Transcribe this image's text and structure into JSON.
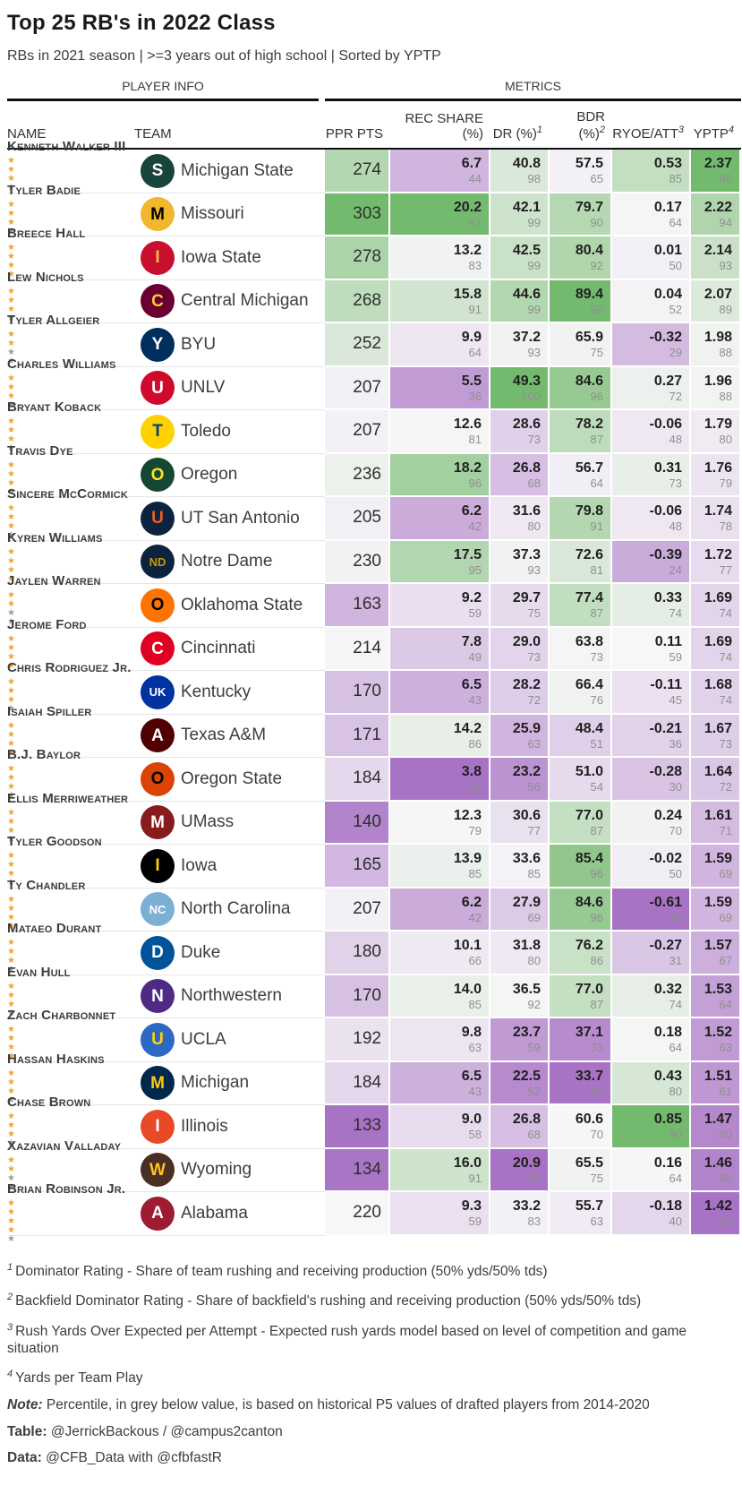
{
  "colors": {
    "gold_star": "#F0A330",
    "grey_star": "#9B9B9B",
    "scale_low": "#a873c4",
    "scale_mid": "#f7f6f8",
    "scale_high": "#74ba6e",
    "header_rule": "#0f0f0f"
  },
  "header": {
    "title": "Top 25 RB's in 2022 Class",
    "subtitle": "RBs in 2021 season | >=3 years out of high school | Sorted by YPTP"
  },
  "chart_data": {
    "type": "table",
    "spanners": [
      "PLAYER INFO",
      "METRICS"
    ],
    "columns": [
      {
        "label": "NAME",
        "sup": ""
      },
      {
        "label": "TEAM",
        "sup": ""
      },
      {
        "label": "PPR PTS",
        "sup": ""
      },
      {
        "label": "REC SHARE (%)",
        "sup": ""
      },
      {
        "label": "DR (%)",
        "sup": "1"
      },
      {
        "label": "BDR (%)",
        "sup": "2"
      },
      {
        "label": "RYOE/ATT",
        "sup": "3"
      },
      {
        "label": "YPTP",
        "sup": "4"
      }
    ],
    "stars_total": 5,
    "rows": [
      {
        "name": "Kenneth Walker III",
        "stars": 3,
        "team": "Michigan State",
        "logo": {
          "bg": "#18453B",
          "fg": "#FFFFFF",
          "text": "S"
        },
        "ppr": "274",
        "rec": [
          "6.7",
          "44"
        ],
        "dr": [
          "40.8",
          "98"
        ],
        "bdr": [
          "57.5",
          "65"
        ],
        "ryoe": [
          "0.53",
          "85"
        ],
        "yptp": [
          "2.37",
          "96"
        ]
      },
      {
        "name": "Tyler Badie",
        "stars": 3,
        "team": "Missouri",
        "logo": {
          "bg": "#F1B82D",
          "fg": "#000000",
          "text": "M"
        },
        "ppr": "303",
        "rec": [
          "20.2",
          "97"
        ],
        "dr": [
          "42.1",
          "99"
        ],
        "bdr": [
          "79.7",
          "90"
        ],
        "ryoe": [
          "0.17",
          "64"
        ],
        "yptp": [
          "2.22",
          "94"
        ]
      },
      {
        "name": "Breece Hall",
        "stars": 4,
        "team": "Iowa State",
        "logo": {
          "bg": "#C8102E",
          "fg": "#F1BE48",
          "text": "I"
        },
        "ppr": "278",
        "rec": [
          "13.2",
          "83"
        ],
        "dr": [
          "42.5",
          "99"
        ],
        "bdr": [
          "80.4",
          "92"
        ],
        "ryoe": [
          "0.01",
          "50"
        ],
        "yptp": [
          "2.14",
          "93"
        ]
      },
      {
        "name": "Lew Nichols",
        "stars": 3,
        "team": "Central Michigan",
        "logo": {
          "bg": "#6A0032",
          "fg": "#FFC82E",
          "text": "C"
        },
        "ppr": "268",
        "rec": [
          "15.8",
          "91"
        ],
        "dr": [
          "44.6",
          "99"
        ],
        "bdr": [
          "89.4",
          "98"
        ],
        "ryoe": [
          "0.04",
          "52"
        ],
        "yptp": [
          "2.07",
          "89"
        ]
      },
      {
        "name": "Tyler Allgeier",
        "stars": 2,
        "team": "BYU",
        "logo": {
          "bg": "#002E5D",
          "fg": "#FFFFFF",
          "text": "Y"
        },
        "ppr": "252",
        "rec": [
          "9.9",
          "64"
        ],
        "dr": [
          "37.2",
          "93"
        ],
        "bdr": [
          "65.9",
          "75"
        ],
        "ryoe": [
          "-0.32",
          "29"
        ],
        "yptp": [
          "1.98",
          "88"
        ]
      },
      {
        "name": "Charles Williams",
        "stars": 3,
        "team": "UNLV",
        "logo": {
          "bg": "#CF0A2C",
          "fg": "#FFFFFF",
          "text": "U"
        },
        "ppr": "207",
        "rec": [
          "5.5",
          "36"
        ],
        "dr": [
          "49.3",
          "100"
        ],
        "bdr": [
          "84.6",
          "96"
        ],
        "ryoe": [
          "0.27",
          "72"
        ],
        "yptp": [
          "1.96",
          "88"
        ]
      },
      {
        "name": "Bryant Koback",
        "stars": 3,
        "team": "Toledo",
        "logo": {
          "bg": "#FFD100",
          "fg": "#003E7E",
          "text": "T"
        },
        "ppr": "207",
        "rec": [
          "12.6",
          "81"
        ],
        "dr": [
          "28.6",
          "73"
        ],
        "bdr": [
          "78.2",
          "87"
        ],
        "ryoe": [
          "-0.06",
          "48"
        ],
        "yptp": [
          "1.79",
          "80"
        ]
      },
      {
        "name": "Travis Dye",
        "stars": 3,
        "team": "Oregon",
        "logo": {
          "bg": "#154733",
          "fg": "#FEE123",
          "text": "O"
        },
        "ppr": "236",
        "rec": [
          "18.2",
          "96"
        ],
        "dr": [
          "26.8",
          "68"
        ],
        "bdr": [
          "56.7",
          "64"
        ],
        "ryoe": [
          "0.31",
          "73"
        ],
        "yptp": [
          "1.76",
          "79"
        ]
      },
      {
        "name": "Sincere McCormick",
        "stars": 3,
        "team": "UT San Antonio",
        "logo": {
          "bg": "#0C2340",
          "fg": "#F15A22",
          "text": "U"
        },
        "ppr": "205",
        "rec": [
          "6.2",
          "42"
        ],
        "dr": [
          "31.6",
          "80"
        ],
        "bdr": [
          "79.8",
          "91"
        ],
        "ryoe": [
          "-0.06",
          "48"
        ],
        "yptp": [
          "1.74",
          "78"
        ]
      },
      {
        "name": "Kyren Williams",
        "stars": 4,
        "team": "Notre Dame",
        "logo": {
          "bg": "#0C2340",
          "fg": "#C99700",
          "text": "ND"
        },
        "ppr": "230",
        "rec": [
          "17.5",
          "95"
        ],
        "dr": [
          "37.3",
          "93"
        ],
        "bdr": [
          "72.6",
          "81"
        ],
        "ryoe": [
          "-0.39",
          "24"
        ],
        "yptp": [
          "1.72",
          "77"
        ]
      },
      {
        "name": "Jaylen Warren",
        "stars": 2,
        "team": "Oklahoma State",
        "logo": {
          "bg": "#FF7300",
          "fg": "#000000",
          "text": "O"
        },
        "ppr": "163",
        "rec": [
          "9.2",
          "59"
        ],
        "dr": [
          "29.7",
          "75"
        ],
        "bdr": [
          "77.4",
          "87"
        ],
        "ryoe": [
          "0.33",
          "74"
        ],
        "yptp": [
          "1.69",
          "74"
        ]
      },
      {
        "name": "Jerome Ford",
        "stars": 4,
        "team": "Cincinnati",
        "logo": {
          "bg": "#E00122",
          "fg": "#FFFFFF",
          "text": "C"
        },
        "ppr": "214",
        "rec": [
          "7.8",
          "49"
        ],
        "dr": [
          "29.0",
          "73"
        ],
        "bdr": [
          "63.8",
          "73"
        ],
        "ryoe": [
          "0.11",
          "59"
        ],
        "yptp": [
          "1.69",
          "74"
        ]
      },
      {
        "name": "Chris Rodriguez Jr.",
        "stars": 3,
        "team": "Kentucky",
        "logo": {
          "bg": "#0033A0",
          "fg": "#FFFFFF",
          "text": "UK"
        },
        "ppr": "170",
        "rec": [
          "6.5",
          "43"
        ],
        "dr": [
          "28.2",
          "72"
        ],
        "bdr": [
          "66.4",
          "76"
        ],
        "ryoe": [
          "-0.11",
          "45"
        ],
        "yptp": [
          "1.68",
          "74"
        ]
      },
      {
        "name": "Isaiah Spiller",
        "stars": 4,
        "team": "Texas A&M",
        "logo": {
          "bg": "#500000",
          "fg": "#FFFFFF",
          "text": "A"
        },
        "ppr": "171",
        "rec": [
          "14.2",
          "86"
        ],
        "dr": [
          "25.9",
          "63"
        ],
        "bdr": [
          "48.4",
          "51"
        ],
        "ryoe": [
          "-0.21",
          "36"
        ],
        "yptp": [
          "1.67",
          "73"
        ]
      },
      {
        "name": "B.J. Baylor",
        "stars": 3,
        "team": "Oregon State",
        "logo": {
          "bg": "#DC4405",
          "fg": "#000000",
          "text": "O"
        },
        "ppr": "184",
        "rec": [
          "3.8",
          "22"
        ],
        "dr": [
          "23.2",
          "56"
        ],
        "bdr": [
          "51.0",
          "54"
        ],
        "ryoe": [
          "-0.28",
          "30"
        ],
        "yptp": [
          "1.64",
          "72"
        ]
      },
      {
        "name": "Ellis Merriweather",
        "stars": 3,
        "team": "UMass",
        "logo": {
          "bg": "#881C1C",
          "fg": "#FFFFFF",
          "text": "M"
        },
        "ppr": "140",
        "rec": [
          "12.3",
          "79"
        ],
        "dr": [
          "30.6",
          "77"
        ],
        "bdr": [
          "77.0",
          "87"
        ],
        "ryoe": [
          "0.24",
          "70"
        ],
        "yptp": [
          "1.61",
          "71"
        ]
      },
      {
        "name": "Tyler Goodson",
        "stars": 3,
        "team": "Iowa",
        "logo": {
          "bg": "#000000",
          "fg": "#FFCD00",
          "text": "I"
        },
        "ppr": "165",
        "rec": [
          "13.9",
          "85"
        ],
        "dr": [
          "33.6",
          "85"
        ],
        "bdr": [
          "85.4",
          "96"
        ],
        "ryoe": [
          "-0.02",
          "50"
        ],
        "yptp": [
          "1.59",
          "69"
        ]
      },
      {
        "name": "Ty Chandler",
        "stars": 4,
        "team": "North Carolina",
        "logo": {
          "bg": "#7BAFD4",
          "fg": "#FFFFFF",
          "text": "NC"
        },
        "ppr": "207",
        "rec": [
          "6.2",
          "42"
        ],
        "dr": [
          "27.9",
          "69"
        ],
        "bdr": [
          "84.6",
          "96"
        ],
        "ryoe": [
          "-0.61",
          "15"
        ],
        "yptp": [
          "1.59",
          "69"
        ]
      },
      {
        "name": "Mataeo Durant",
        "stars": 3,
        "team": "Duke",
        "logo": {
          "bg": "#00539B",
          "fg": "#FFFFFF",
          "text": "D"
        },
        "ppr": "180",
        "rec": [
          "10.1",
          "66"
        ],
        "dr": [
          "31.8",
          "80"
        ],
        "bdr": [
          "76.2",
          "86"
        ],
        "ryoe": [
          "-0.27",
          "31"
        ],
        "yptp": [
          "1.57",
          "67"
        ]
      },
      {
        "name": "Evan Hull",
        "stars": 3,
        "team": "Northwestern",
        "logo": {
          "bg": "#4E2A84",
          "fg": "#FFFFFF",
          "text": "N"
        },
        "ppr": "170",
        "rec": [
          "14.0",
          "85"
        ],
        "dr": [
          "36.5",
          "92"
        ],
        "bdr": [
          "77.0",
          "87"
        ],
        "ryoe": [
          "0.32",
          "74"
        ],
        "yptp": [
          "1.53",
          "64"
        ]
      },
      {
        "name": "Zach Charbonnet",
        "stars": 4,
        "team": "UCLA",
        "logo": {
          "bg": "#2D68C4",
          "fg": "#FFD100",
          "text": "U"
        },
        "ppr": "192",
        "rec": [
          "9.8",
          "63"
        ],
        "dr": [
          "23.7",
          "59"
        ],
        "bdr": [
          "37.1",
          "33"
        ],
        "ryoe": [
          "0.18",
          "64"
        ],
        "yptp": [
          "1.52",
          "63"
        ]
      },
      {
        "name": "Hassan Haskins",
        "stars": 3,
        "team": "Michigan",
        "logo": {
          "bg": "#00274C",
          "fg": "#FFCB05",
          "text": "M"
        },
        "ppr": "184",
        "rec": [
          "6.5",
          "43"
        ],
        "dr": [
          "22.5",
          "52"
        ],
        "bdr": [
          "33.7",
          "29"
        ],
        "ryoe": [
          "0.43",
          "80"
        ],
        "yptp": [
          "1.51",
          "61"
        ]
      },
      {
        "name": "Chase Brown",
        "stars": 3,
        "team": "Illinois",
        "logo": {
          "bg": "#E84A27",
          "fg": "#FFFFFF",
          "text": "I"
        },
        "ppr": "133",
        "rec": [
          "9.0",
          "58"
        ],
        "dr": [
          "26.8",
          "68"
        ],
        "bdr": [
          "60.6",
          "70"
        ],
        "ryoe": [
          "0.85",
          "90"
        ],
        "yptp": [
          "1.47",
          "60"
        ]
      },
      {
        "name": "Xazavian Valladay",
        "stars": 2,
        "team": "Wyoming",
        "logo": {
          "bg": "#492F24",
          "fg": "#FFC425",
          "text": "W"
        },
        "ppr": "134",
        "rec": [
          "16.0",
          "91"
        ],
        "dr": [
          "20.9",
          "46"
        ],
        "bdr": [
          "65.5",
          "75"
        ],
        "ryoe": [
          "0.16",
          "64"
        ],
        "yptp": [
          "1.46",
          "58"
        ]
      },
      {
        "name": "Brian Robinson Jr.",
        "stars": 4,
        "team": "Alabama",
        "logo": {
          "bg": "#9E1B32",
          "fg": "#FFFFFF",
          "text": "A"
        },
        "ppr": "220",
        "rec": [
          "9.3",
          "59"
        ],
        "dr": [
          "33.2",
          "83"
        ],
        "bdr": [
          "55.7",
          "63"
        ],
        "ryoe": [
          "-0.18",
          "40"
        ],
        "yptp": [
          "1.42",
          "56"
        ]
      }
    ]
  },
  "footnotes": [
    {
      "mark": "1",
      "text": "Dominator Rating - Share of team rushing and receiving production (50% yds/50% tds)"
    },
    {
      "mark": "2",
      "text": "Backfield Dominator Rating - Share of backfield's rushing and receiving production (50% yds/50% tds)"
    },
    {
      "mark": "3",
      "text": "Rush Yards Over Expected per Attempt - Expected rush yards model based on level of competition and game situation"
    },
    {
      "mark": "4",
      "text": "Yards per Team Play"
    }
  ],
  "notes": {
    "note_label": "Note:",
    "note_text": "Percentile, in grey below value, is based on historical P5 values of drafted players from 2014-2020",
    "table_label": "Table:",
    "table_text": "@JerrickBackous / @campus2canton",
    "data_label": "Data:",
    "data_text": "@CFB_Data with @cfbfastR"
  }
}
